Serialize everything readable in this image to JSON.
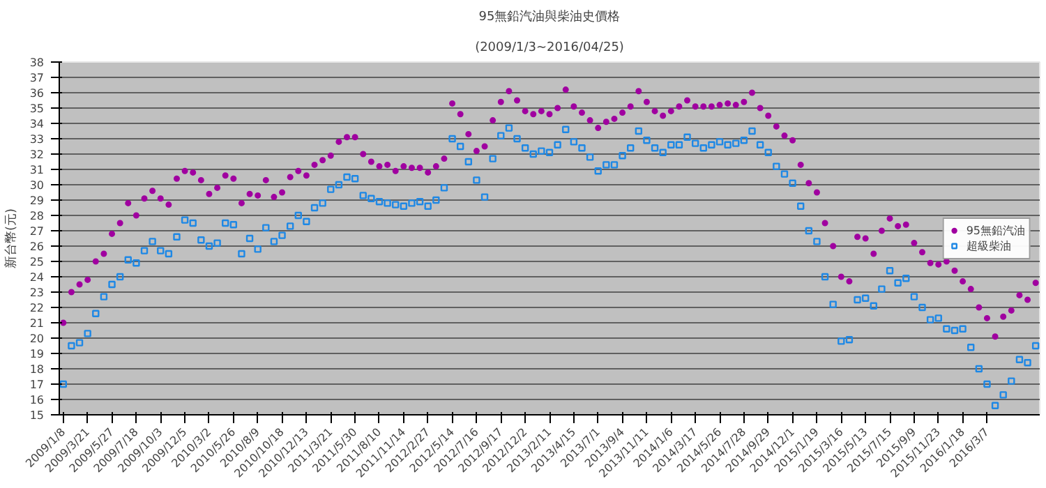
{
  "chart_data": {
    "type": "scatter",
    "title": "95無鉛汽油與柴油史價格",
    "subtitle": "(2009/1/3~2016/04/25)",
    "ylabel": "新台幣(元)",
    "categories": [
      "2009/1/8",
      null,
      null,
      "2009/3/21",
      null,
      null,
      "2009/5/27",
      null,
      null,
      "2009/7/18",
      null,
      null,
      "2009/10/3",
      null,
      null,
      "2009/12/5",
      null,
      null,
      "2010/3/2",
      null,
      null,
      "2010/5/26",
      null,
      null,
      "2010/8/9",
      null,
      null,
      "2010/10/18",
      null,
      null,
      "2010/12/13",
      null,
      null,
      "2011/3/21",
      null,
      null,
      "2011/5/30",
      null,
      null,
      "2011/8/10",
      null,
      null,
      "2011/11/14",
      null,
      null,
      "2012/2/27",
      null,
      null,
      "2012/5/14",
      null,
      null,
      "2012/7/16",
      null,
      null,
      "2012/9/17",
      null,
      null,
      "2012/12/2",
      null,
      null,
      "2013/2/11",
      null,
      null,
      "2013/4/15",
      null,
      null,
      "2013/7/1",
      null,
      null,
      "2013/9/4",
      null,
      null,
      "2013/11/11",
      null,
      null,
      "2014/1/6",
      null,
      null,
      "2014/3/17",
      null,
      null,
      "2014/5/26",
      null,
      null,
      "2014/7/28",
      null,
      null,
      "2014/9/29",
      null,
      null,
      "2014/12/1",
      null,
      null,
      "2015/1/19",
      null,
      null,
      "2015/3/16",
      null,
      null,
      "2015/5/13",
      null,
      null,
      "2015/7/15",
      null,
      null,
      "2015/9/9",
      null,
      null,
      "2015/11/23",
      null,
      null,
      "2016/1/18",
      null,
      null,
      "2016/3/7",
      null,
      null,
      null,
      null,
      null,
      null
    ],
    "series": [
      {
        "name": "95無鉛汽油",
        "color": "#a000a0",
        "marker": "circle",
        "values": [
          21,
          23,
          23.5,
          23.8,
          25,
          25.5,
          26.8,
          27.5,
          28.8,
          28,
          29.1,
          29.6,
          29.1,
          28.7,
          30.4,
          30.9,
          30.8,
          30.3,
          29.4,
          29.8,
          30.6,
          30.4,
          28.8,
          29.4,
          29.3,
          30.3,
          29.2,
          29.5,
          30.5,
          30.9,
          30.6,
          31.3,
          31.6,
          31.9,
          32.8,
          33.1,
          33.1,
          32.0,
          31.5,
          31.2,
          31.3,
          30.9,
          31.2,
          31.1,
          31.1,
          30.8,
          31.2,
          31.7,
          35.3,
          34.6,
          33.3,
          32.2,
          32.5,
          34.2,
          35.4,
          36.1,
          35.5,
          34.8,
          34.6,
          34.8,
          34.6,
          35,
          36.2,
          35.1,
          34.7,
          34.2,
          33.7,
          34.1,
          34.3,
          34.7,
          35.1,
          36.1,
          35.4,
          34.8,
          34.5,
          34.8,
          35.1,
          35.5,
          35.1,
          35.1,
          35.1,
          35.2,
          35.3,
          35.2,
          35.4,
          36.0,
          35.0,
          34.5,
          33.8,
          33.2,
          32.9,
          31.3,
          30.1,
          29.5,
          27.5,
          26.0,
          24.0,
          23.7,
          26.6,
          26.5,
          25.5,
          27,
          27.8,
          27.3,
          27.4,
          26.2,
          25.6,
          24.9,
          24.8,
          25.0,
          24.4,
          23.7,
          23.2,
          22.0,
          21.3,
          20.1,
          21.4,
          21.8,
          22.8,
          22.5,
          23.6
        ]
      },
      {
        "name": "超級柴油",
        "color": "#1e88e5",
        "marker": "square",
        "values": [
          17,
          19.5,
          19.7,
          20.3,
          21.6,
          22.7,
          23.5,
          24,
          25.1,
          24.9,
          25.7,
          26.3,
          25.7,
          25.5,
          26.6,
          27.7,
          27.5,
          26.4,
          26,
          26.2,
          27.5,
          27.4,
          25.5,
          26.5,
          25.8,
          27.2,
          26.3,
          26.7,
          27.3,
          28,
          27.6,
          28.5,
          28.8,
          29.7,
          30,
          30.5,
          30.4,
          29.3,
          29.1,
          28.9,
          28.8,
          28.7,
          28.6,
          28.8,
          28.9,
          28.6,
          29,
          29.8,
          33,
          32.5,
          31.5,
          30.3,
          29.2,
          31.7,
          33.2,
          33.7,
          33.0,
          32.4,
          32.0,
          32.2,
          32.1,
          32.6,
          33.6,
          32.8,
          32.4,
          31.8,
          30.9,
          31.3,
          31.3,
          31.9,
          32.4,
          33.5,
          32.9,
          32.4,
          32.1,
          32.6,
          32.6,
          33.1,
          32.7,
          32.4,
          32.6,
          32.8,
          32.6,
          32.7,
          32.9,
          33.5,
          32.6,
          32.1,
          31.2,
          30.7,
          30.1,
          28.6,
          27,
          26.3,
          24.0,
          22.2,
          19.8,
          19.9,
          22.5,
          22.6,
          22.1,
          23.2,
          24.4,
          23.6,
          23.9,
          22.7,
          22.0,
          21.2,
          21.3,
          20.6,
          20.5,
          20.6,
          19.4,
          18.0,
          17.0,
          15.6,
          16.3,
          17.2,
          18.6,
          18.4,
          19.5
        ]
      }
    ],
    "ylim": [
      15,
      38
    ],
    "yticks": [
      15,
      16,
      17,
      18,
      19,
      20,
      21,
      22,
      23,
      24,
      25,
      26,
      27,
      28,
      29,
      30,
      31,
      32,
      33,
      34,
      35,
      36,
      37,
      38
    ],
    "grid": "y",
    "legend": "right"
  }
}
